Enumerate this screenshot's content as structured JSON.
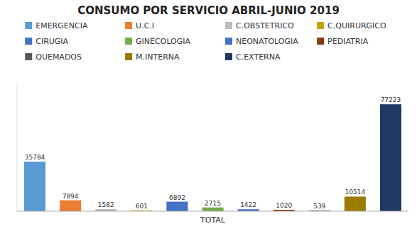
{
  "chart_data": {
    "type": "bar",
    "title": "CONSUMO POR SERVICIO ABRIL-JUNIO 2019",
    "xlabel": "TOTAL",
    "categories": [
      "EMERGENCIA",
      "U.C.I",
      "C.OBSTETRICO",
      "C.QUIRURGICO",
      "CIRUGIA",
      "GINECOLOGIA",
      "NEONATOLOGIA",
      "PEDIATRIA",
      "QUEMADOS",
      "M.INTERNA",
      "C.EXTERNA"
    ],
    "values": [
      35784,
      7894,
      1582,
      601,
      6892,
      2715,
      1422,
      1020,
      539,
      10514,
      77223
    ],
    "colors": [
      "#5B9BD5",
      "#ED7D31",
      "#BDBDBD",
      "#C8A000",
      "#4472C4",
      "#70AD47",
      "#4472C4",
      "#843C0C",
      "#595959",
      "#9B7A00",
      "#1F3864"
    ],
    "ylim": [
      0,
      91123.14
    ],
    "legend": "top",
    "data_labels": true,
    "tick_labels": false,
    "grid": false
  }
}
